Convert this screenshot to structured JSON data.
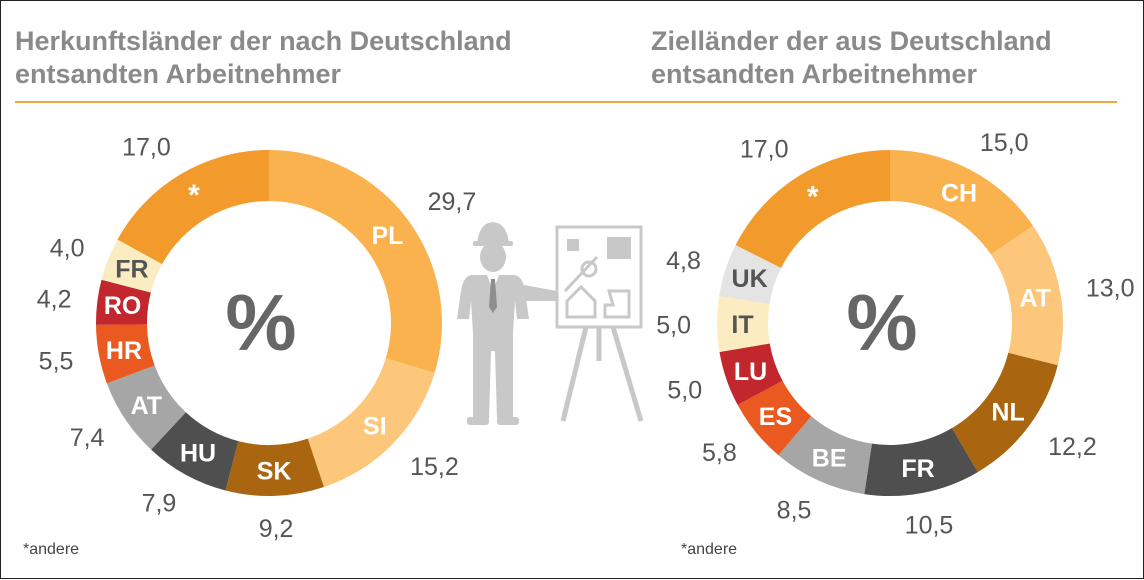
{
  "colors": {
    "title": "#8a8a8a",
    "rule": "#f4a63b",
    "value_text": "#555555",
    "segment_label": "#ffffff",
    "dark_segment_label": "#555555",
    "illustration": "#c8c8c8"
  },
  "center_symbol": "%",
  "chart_data": [
    {
      "type": "pie",
      "variant": "donut",
      "title": [
        "Herkunftsländer der nach Deutschland",
        "entsandten Arbeitnehmer"
      ],
      "footnote": "*andere",
      "unit": "%",
      "slices": [
        {
          "label": "PL",
          "value": 29.7,
          "display": "29,7",
          "color": "#f9b24d"
        },
        {
          "label": "SI",
          "value": 15.2,
          "display": "15,2",
          "color": "#fcc67b"
        },
        {
          "label": "SK",
          "value": 9.2,
          "display": "9,2",
          "color": "#a9650f"
        },
        {
          "label": "HU",
          "value": 7.9,
          "display": "7,9",
          "color": "#4f4f4f"
        },
        {
          "label": "AT",
          "value": 7.4,
          "display": "7,4",
          "color": "#a6a6a6"
        },
        {
          "label": "HR",
          "value": 5.5,
          "display": "5,5",
          "color": "#ea5a20"
        },
        {
          "label": "RO",
          "value": 4.2,
          "display": "4,2",
          "color": "#c1272d"
        },
        {
          "label": "FR",
          "value": 4.0,
          "display": "4,0",
          "color": "#fbedc1"
        },
        {
          "label": "*",
          "value": 17.0,
          "display": "17,0",
          "color": "#f29a2c"
        }
      ]
    },
    {
      "type": "pie",
      "variant": "donut",
      "title": [
        "Zielländer der aus Deutschland",
        "entsandten Arbeitnehmer"
      ],
      "footnote": "*andere",
      "unit": "%",
      "slices": [
        {
          "label": "CH",
          "value": 15.0,
          "display": "15,0",
          "color": "#f9b24d"
        },
        {
          "label": "AT",
          "value": 13.0,
          "display": "13,0",
          "color": "#fcc67b"
        },
        {
          "label": "NL",
          "value": 12.2,
          "display": "12,2",
          "color": "#a9650f"
        },
        {
          "label": "FR",
          "value": 10.5,
          "display": "10,5",
          "color": "#4f4f4f"
        },
        {
          "label": "BE",
          "value": 8.5,
          "display": "8,5",
          "color": "#a6a6a6"
        },
        {
          "label": "ES",
          "value": 5.8,
          "display": "5,8",
          "color": "#ea5a20"
        },
        {
          "label": "LU",
          "value": 5.0,
          "display": "5,0",
          "color": "#c1272d"
        },
        {
          "label": "IT",
          "value": 5.0,
          "display": "5,0",
          "color": "#fbedc1"
        },
        {
          "label": "UK",
          "value": 4.8,
          "display": "4,8",
          "color": "#e4e4e4"
        },
        {
          "label": "*",
          "value": 17.0,
          "display": "17,0",
          "color": "#f29a2c"
        }
      ]
    }
  ]
}
